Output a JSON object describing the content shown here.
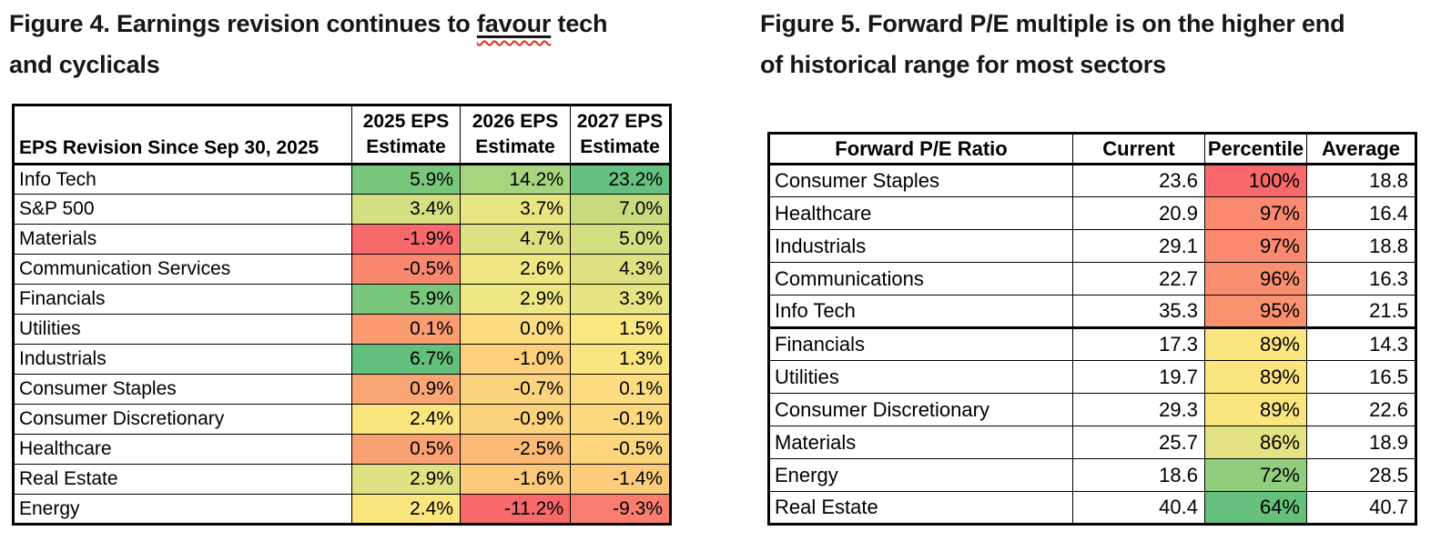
{
  "figure4": {
    "title": {
      "part1": "Figure 4. Earnings revision continues to ",
      "misspelled_word": "favour",
      "part2": " tech",
      "line2": "and cyclicals"
    },
    "table": {
      "corner_header": "EPS Revision Since Sep 30, 2025",
      "col_headers": [
        {
          "line1": "2025 EPS",
          "line2": "Estimate"
        },
        {
          "line1": "2026 EPS",
          "line2": "Estimate"
        },
        {
          "line1": "2027 EPS",
          "line2": "Estimate"
        }
      ],
      "rows": [
        {
          "label": "Info Tech",
          "cells": [
            {
              "text": "5.9%",
              "bg": "#79C67D"
            },
            {
              "text": "14.2%",
              "bg": "#A6D47F"
            },
            {
              "text": "23.2%",
              "bg": "#66C180"
            }
          ]
        },
        {
          "label": "S&P 500",
          "cells": [
            {
              "text": "3.4%",
              "bg": "#D5DF81"
            },
            {
              "text": "3.7%",
              "bg": "#E8E583"
            },
            {
              "text": "7.0%",
              "bg": "#C8DB80"
            }
          ]
        },
        {
          "label": "Materials",
          "cells": [
            {
              "text": "-1.9%",
              "bg": "#F8696B"
            },
            {
              "text": "4.7%",
              "bg": "#DCE182"
            },
            {
              "text": "5.0%",
              "bg": "#D5DF81"
            }
          ]
        },
        {
          "label": "Communication Services",
          "cells": [
            {
              "text": "-0.5%",
              "bg": "#F9886E"
            },
            {
              "text": "2.6%",
              "bg": "#F0E783"
            },
            {
              "text": "4.3%",
              "bg": "#DDE182"
            }
          ]
        },
        {
          "label": "Financials",
          "cells": [
            {
              "text": "5.9%",
              "bg": "#79C67D"
            },
            {
              "text": "2.9%",
              "bg": "#EEE683"
            },
            {
              "text": "3.3%",
              "bg": "#E6E483"
            }
          ]
        },
        {
          "label": "Utilities",
          "cells": [
            {
              "text": "0.1%",
              "bg": "#FA9B71"
            },
            {
              "text": "0.0%",
              "bg": "#FCDC7E"
            },
            {
              "text": "1.5%",
              "bg": "#FAE780"
            }
          ]
        },
        {
          "label": "Industrials",
          "cells": [
            {
              "text": "6.7%",
              "bg": "#63C07B"
            },
            {
              "text": "-1.0%",
              "bg": "#FCD07C"
            },
            {
              "text": "1.3%",
              "bg": "#FAE680"
            }
          ]
        },
        {
          "label": "Consumer Staples",
          "cells": [
            {
              "text": "0.9%",
              "bg": "#FAA674"
            },
            {
              "text": "-0.7%",
              "bg": "#FCD47D"
            },
            {
              "text": "0.1%",
              "bg": "#FCDC7E"
            }
          ]
        },
        {
          "label": "Consumer Discretionary",
          "cells": [
            {
              "text": "2.4%",
              "bg": "#FBE57F"
            },
            {
              "text": "-0.9%",
              "bg": "#FCD27D"
            },
            {
              "text": "-0.1%",
              "bg": "#FCD97E"
            }
          ]
        },
        {
          "label": "Healthcare",
          "cells": [
            {
              "text": "0.5%",
              "bg": "#FAA173"
            },
            {
              "text": "-2.5%",
              "bg": "#FBBA76"
            },
            {
              "text": "-0.5%",
              "bg": "#FCD67D"
            }
          ]
        },
        {
          "label": "Real Estate",
          "cells": [
            {
              "text": "2.9%",
              "bg": "#DFE282"
            },
            {
              "text": "-1.6%",
              "bg": "#FCC97B"
            },
            {
              "text": "-1.4%",
              "bg": "#FCCC7B"
            }
          ]
        },
        {
          "label": "Energy",
          "cells": [
            {
              "text": "2.4%",
              "bg": "#FBE57F"
            },
            {
              "text": "-11.2%",
              "bg": "#F8696B"
            },
            {
              "text": "-9.3%",
              "bg": "#F97E70"
            }
          ]
        }
      ]
    }
  },
  "figure5": {
    "title": {
      "line1": "Figure 5. Forward P/E multiple is on the higher end",
      "line2": "of historical range for most sectors"
    },
    "table": {
      "headers": [
        "Forward P/E Ratio",
        "Current",
        "Percentile",
        "Average"
      ],
      "rows": [
        {
          "label": "Consumer Staples",
          "cells": [
            {
              "text": "23.6"
            },
            {
              "text": "100%",
              "bg": "#F8696B"
            },
            {
              "text": "18.8"
            }
          ]
        },
        {
          "label": "Healthcare",
          "cells": [
            {
              "text": "20.9"
            },
            {
              "text": "97%",
              "bg": "#F98A6F"
            },
            {
              "text": "16.4"
            }
          ]
        },
        {
          "label": "Industrials",
          "cells": [
            {
              "text": "29.1"
            },
            {
              "text": "97%",
              "bg": "#F98A6F"
            },
            {
              "text": "18.8"
            }
          ]
        },
        {
          "label": "Communications",
          "cells": [
            {
              "text": "22.7"
            },
            {
              "text": "96%",
              "bg": "#F98F70"
            },
            {
              "text": "16.3"
            }
          ]
        },
        {
          "label": "Info Tech",
          "cells": [
            {
              "text": "35.3"
            },
            {
              "text": "95%",
              "bg": "#FA9270"
            },
            {
              "text": "21.5"
            }
          ],
          "group_end": true
        },
        {
          "label": "Financials",
          "cells": [
            {
              "text": "17.3"
            },
            {
              "text": "89%",
              "bg": "#FBE57F"
            },
            {
              "text": "14.3"
            }
          ]
        },
        {
          "label": "Utilities",
          "cells": [
            {
              "text": "19.7"
            },
            {
              "text": "89%",
              "bg": "#FBE57F"
            },
            {
              "text": "16.5"
            }
          ]
        },
        {
          "label": "Consumer Discretionary",
          "cells": [
            {
              "text": "29.3"
            },
            {
              "text": "89%",
              "bg": "#FBE57F"
            },
            {
              "text": "22.6"
            }
          ]
        },
        {
          "label": "Materials",
          "cells": [
            {
              "text": "25.7"
            },
            {
              "text": "86%",
              "bg": "#E4E383"
            },
            {
              "text": "18.9"
            }
          ]
        },
        {
          "label": "Energy",
          "cells": [
            {
              "text": "18.6"
            },
            {
              "text": "72%",
              "bg": "#90CE7E"
            },
            {
              "text": "28.5"
            }
          ]
        },
        {
          "label": "Real Estate",
          "cells": [
            {
              "text": "40.4"
            },
            {
              "text": "64%",
              "bg": "#66C07C"
            },
            {
              "text": "40.7"
            }
          ]
        }
      ]
    }
  },
  "spellcheck_underline_color": "#DD2F1E"
}
